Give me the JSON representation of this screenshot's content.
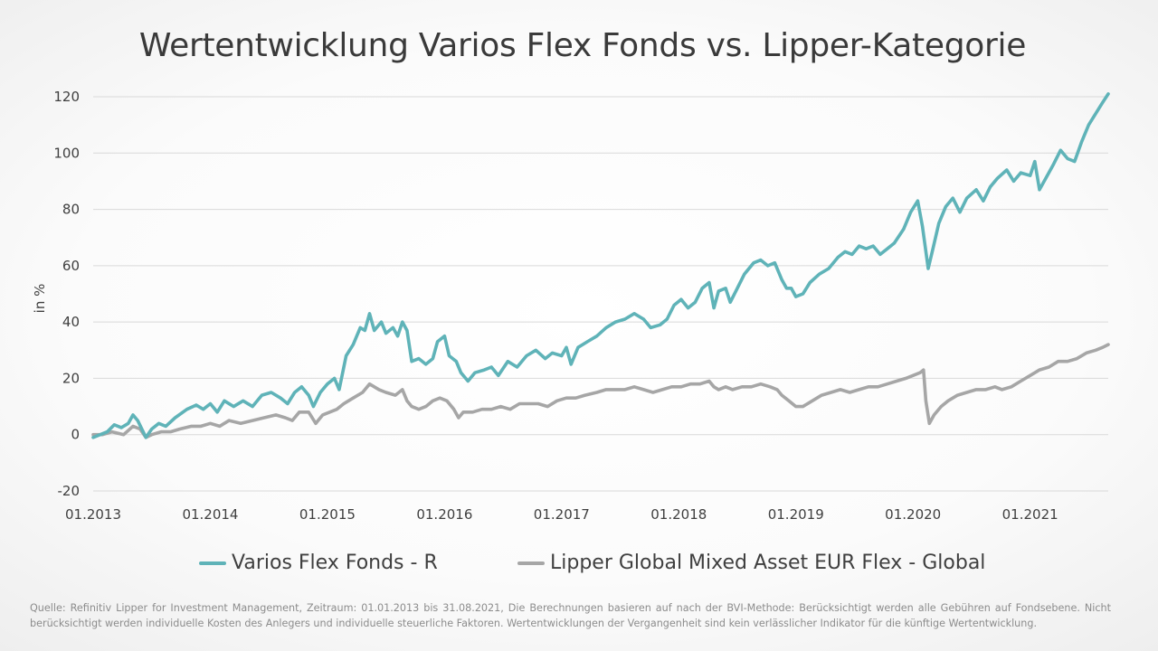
{
  "slide": {
    "title": "Wertentwicklung Varios Flex Fonds vs. Lipper-Kategorie",
    "source_note": "Quelle: Refinitiv Lipper for Investment Management, Zeitraum: 01.01.2013 bis 31.08.2021, Die Berechnungen basieren auf nach der BVI-Methode: Berücksichtigt werden alle Gebühren auf Fondsebene. Nicht berücksichtigt werden individuelle Kosten des Anlegers und individuelle steuerliche Faktoren. Wertentwicklungen der Vergangenheit sind kein verlässlicher Indikator für die künftige Wertentwicklung."
  },
  "chart_data": {
    "type": "line",
    "title": "Wertentwicklung Varios Flex Fonds vs. Lipper-Kategorie",
    "xlabel": "",
    "ylabel": "in %",
    "ylim": [
      -20,
      120
    ],
    "yticks": [
      -20,
      0,
      20,
      40,
      60,
      80,
      100,
      120
    ],
    "xlim": [
      2013.0,
      2021.667
    ],
    "xticks": [
      2013,
      2014,
      2015,
      2016,
      2017,
      2018,
      2019,
      2020,
      2021
    ],
    "xtick_labels": [
      "01.2013",
      "01.2014",
      "01.2015",
      "01.2016",
      "01.2017",
      "01.2018",
      "01.2019",
      "01.2020",
      "01.2021"
    ],
    "grid": "horizontal",
    "legend_position": "bottom",
    "colors": {
      "fund": "#5fb3b8",
      "category": "#a6a6a6",
      "grid": "#d9d9d9"
    },
    "series": [
      {
        "name": "Varios Flex Fonds - R",
        "color": "#5fb3b8",
        "points": [
          [
            2013.0,
            -1
          ],
          [
            2013.06,
            0
          ],
          [
            2013.12,
            1
          ],
          [
            2013.18,
            3.5
          ],
          [
            2013.24,
            2.5
          ],
          [
            2013.3,
            4
          ],
          [
            2013.34,
            7
          ],
          [
            2013.38,
            5
          ],
          [
            2013.45,
            -1
          ],
          [
            2013.5,
            2
          ],
          [
            2013.56,
            4
          ],
          [
            2013.62,
            3
          ],
          [
            2013.7,
            6
          ],
          [
            2013.8,
            9
          ],
          [
            2013.88,
            10.5
          ],
          [
            2013.94,
            9
          ],
          [
            2014.0,
            11
          ],
          [
            2014.06,
            8
          ],
          [
            2014.12,
            12
          ],
          [
            2014.2,
            10
          ],
          [
            2014.28,
            12
          ],
          [
            2014.36,
            10
          ],
          [
            2014.44,
            14
          ],
          [
            2014.52,
            15
          ],
          [
            2014.6,
            13
          ],
          [
            2014.66,
            11
          ],
          [
            2014.72,
            15
          ],
          [
            2014.78,
            17
          ],
          [
            2014.84,
            14
          ],
          [
            2014.88,
            10
          ],
          [
            2014.94,
            15
          ],
          [
            2015.0,
            18
          ],
          [
            2015.06,
            20
          ],
          [
            2015.1,
            16
          ],
          [
            2015.16,
            28
          ],
          [
            2015.22,
            32
          ],
          [
            2015.28,
            38
          ],
          [
            2015.32,
            37
          ],
          [
            2015.36,
            43
          ],
          [
            2015.4,
            37
          ],
          [
            2015.46,
            40
          ],
          [
            2015.5,
            36
          ],
          [
            2015.56,
            38
          ],
          [
            2015.6,
            35
          ],
          [
            2015.64,
            40
          ],
          [
            2015.68,
            37
          ],
          [
            2015.72,
            26
          ],
          [
            2015.78,
            27
          ],
          [
            2015.84,
            25
          ],
          [
            2015.9,
            27
          ],
          [
            2015.94,
            33
          ],
          [
            2016.0,
            35
          ],
          [
            2016.04,
            28
          ],
          [
            2016.1,
            26
          ],
          [
            2016.14,
            22
          ],
          [
            2016.2,
            19
          ],
          [
            2016.26,
            22
          ],
          [
            2016.34,
            23
          ],
          [
            2016.4,
            24
          ],
          [
            2016.46,
            21
          ],
          [
            2016.54,
            26
          ],
          [
            2016.62,
            24
          ],
          [
            2016.7,
            28
          ],
          [
            2016.78,
            30
          ],
          [
            2016.86,
            27
          ],
          [
            2016.92,
            29
          ],
          [
            2017.0,
            28
          ],
          [
            2017.04,
            31
          ],
          [
            2017.08,
            25
          ],
          [
            2017.14,
            31
          ],
          [
            2017.22,
            33
          ],
          [
            2017.3,
            35
          ],
          [
            2017.38,
            38
          ],
          [
            2017.46,
            40
          ],
          [
            2017.54,
            41
          ],
          [
            2017.62,
            43
          ],
          [
            2017.7,
            41
          ],
          [
            2017.76,
            38
          ],
          [
            2017.84,
            39
          ],
          [
            2017.9,
            41
          ],
          [
            2017.96,
            46
          ],
          [
            2018.02,
            48
          ],
          [
            2018.08,
            45
          ],
          [
            2018.14,
            47
          ],
          [
            2018.2,
            52
          ],
          [
            2018.26,
            54
          ],
          [
            2018.3,
            45
          ],
          [
            2018.34,
            51
          ],
          [
            2018.4,
            52
          ],
          [
            2018.44,
            47
          ],
          [
            2018.5,
            52
          ],
          [
            2018.56,
            57
          ],
          [
            2018.64,
            61
          ],
          [
            2018.7,
            62
          ],
          [
            2018.76,
            60
          ],
          [
            2018.82,
            61
          ],
          [
            2018.88,
            55
          ],
          [
            2018.92,
            52
          ],
          [
            2018.96,
            52
          ],
          [
            2019.0,
            49
          ],
          [
            2019.06,
            50
          ],
          [
            2019.12,
            54
          ],
          [
            2019.2,
            57
          ],
          [
            2019.28,
            59
          ],
          [
            2019.36,
            63
          ],
          [
            2019.42,
            65
          ],
          [
            2019.48,
            64
          ],
          [
            2019.54,
            67
          ],
          [
            2019.6,
            66
          ],
          [
            2019.66,
            67
          ],
          [
            2019.72,
            64
          ],
          [
            2019.78,
            66
          ],
          [
            2019.84,
            68
          ],
          [
            2019.92,
            73
          ],
          [
            2019.98,
            79
          ],
          [
            2020.04,
            83
          ],
          [
            2020.08,
            74
          ],
          [
            2020.13,
            59
          ],
          [
            2020.17,
            66
          ],
          [
            2020.22,
            75
          ],
          [
            2020.28,
            81
          ],
          [
            2020.34,
            84
          ],
          [
            2020.4,
            79
          ],
          [
            2020.46,
            84
          ],
          [
            2020.54,
            87
          ],
          [
            2020.6,
            83
          ],
          [
            2020.66,
            88
          ],
          [
            2020.72,
            91
          ],
          [
            2020.8,
            94
          ],
          [
            2020.86,
            90
          ],
          [
            2020.92,
            93
          ],
          [
            2021.0,
            92
          ],
          [
            2021.04,
            97
          ],
          [
            2021.08,
            87
          ],
          [
            2021.12,
            90
          ],
          [
            2021.2,
            96
          ],
          [
            2021.26,
            101
          ],
          [
            2021.32,
            98
          ],
          [
            2021.38,
            97
          ],
          [
            2021.44,
            104
          ],
          [
            2021.5,
            110
          ],
          [
            2021.56,
            114
          ],
          [
            2021.62,
            118
          ],
          [
            2021.667,
            121
          ]
        ]
      },
      {
        "name": "Lipper Global Mixed Asset EUR Flex - Global",
        "color": "#a6a6a6",
        "points": [
          [
            2013.0,
            0
          ],
          [
            2013.08,
            0
          ],
          [
            2013.16,
            1
          ],
          [
            2013.26,
            0
          ],
          [
            2013.34,
            3
          ],
          [
            2013.4,
            2
          ],
          [
            2013.45,
            -1
          ],
          [
            2013.5,
            0
          ],
          [
            2013.58,
            1
          ],
          [
            2013.66,
            1
          ],
          [
            2013.74,
            2
          ],
          [
            2013.84,
            3
          ],
          [
            2013.92,
            3
          ],
          [
            2014.0,
            4
          ],
          [
            2014.08,
            3
          ],
          [
            2014.16,
            5
          ],
          [
            2014.26,
            4
          ],
          [
            2014.36,
            5
          ],
          [
            2014.46,
            6
          ],
          [
            2014.56,
            7
          ],
          [
            2014.64,
            6
          ],
          [
            2014.7,
            5
          ],
          [
            2014.76,
            8
          ],
          [
            2014.84,
            8
          ],
          [
            2014.9,
            4
          ],
          [
            2014.96,
            7
          ],
          [
            2015.02,
            8
          ],
          [
            2015.08,
            9
          ],
          [
            2015.14,
            11
          ],
          [
            2015.22,
            13
          ],
          [
            2015.3,
            15
          ],
          [
            2015.36,
            18
          ],
          [
            2015.44,
            16
          ],
          [
            2015.5,
            15
          ],
          [
            2015.58,
            14
          ],
          [
            2015.64,
            16
          ],
          [
            2015.68,
            12
          ],
          [
            2015.72,
            10
          ],
          [
            2015.78,
            9
          ],
          [
            2015.84,
            10
          ],
          [
            2015.9,
            12
          ],
          [
            2015.96,
            13
          ],
          [
            2016.02,
            12
          ],
          [
            2016.08,
            9
          ],
          [
            2016.12,
            6
          ],
          [
            2016.16,
            8
          ],
          [
            2016.24,
            8
          ],
          [
            2016.32,
            9
          ],
          [
            2016.4,
            9
          ],
          [
            2016.48,
            10
          ],
          [
            2016.56,
            9
          ],
          [
            2016.64,
            11
          ],
          [
            2016.72,
            11
          ],
          [
            2016.8,
            11
          ],
          [
            2016.88,
            10
          ],
          [
            2016.96,
            12
          ],
          [
            2017.04,
            13
          ],
          [
            2017.12,
            13
          ],
          [
            2017.2,
            14
          ],
          [
            2017.3,
            15
          ],
          [
            2017.38,
            16
          ],
          [
            2017.46,
            16
          ],
          [
            2017.54,
            16
          ],
          [
            2017.62,
            17
          ],
          [
            2017.7,
            16
          ],
          [
            2017.78,
            15
          ],
          [
            2017.86,
            16
          ],
          [
            2017.94,
            17
          ],
          [
            2018.02,
            17
          ],
          [
            2018.1,
            18
          ],
          [
            2018.18,
            18
          ],
          [
            2018.26,
            19
          ],
          [
            2018.3,
            17
          ],
          [
            2018.34,
            16
          ],
          [
            2018.4,
            17
          ],
          [
            2018.46,
            16
          ],
          [
            2018.54,
            17
          ],
          [
            2018.62,
            17
          ],
          [
            2018.7,
            18
          ],
          [
            2018.78,
            17
          ],
          [
            2018.84,
            16
          ],
          [
            2018.88,
            14
          ],
          [
            2018.94,
            12
          ],
          [
            2019.0,
            10
          ],
          [
            2019.06,
            10
          ],
          [
            2019.14,
            12
          ],
          [
            2019.22,
            14
          ],
          [
            2019.3,
            15
          ],
          [
            2019.38,
            16
          ],
          [
            2019.46,
            15
          ],
          [
            2019.54,
            16
          ],
          [
            2019.62,
            17
          ],
          [
            2019.7,
            17
          ],
          [
            2019.78,
            18
          ],
          [
            2019.86,
            19
          ],
          [
            2019.94,
            20
          ],
          [
            2020.0,
            21
          ],
          [
            2020.06,
            22
          ],
          [
            2020.09,
            23
          ],
          [
            2020.11,
            12
          ],
          [
            2020.14,
            4
          ],
          [
            2020.18,
            7
          ],
          [
            2020.24,
            10
          ],
          [
            2020.3,
            12
          ],
          [
            2020.38,
            14
          ],
          [
            2020.46,
            15
          ],
          [
            2020.54,
            16
          ],
          [
            2020.62,
            16
          ],
          [
            2020.7,
            17
          ],
          [
            2020.76,
            16
          ],
          [
            2020.84,
            17
          ],
          [
            2020.92,
            19
          ],
          [
            2021.0,
            21
          ],
          [
            2021.08,
            23
          ],
          [
            2021.16,
            24
          ],
          [
            2021.24,
            26
          ],
          [
            2021.32,
            26
          ],
          [
            2021.4,
            27
          ],
          [
            2021.48,
            29
          ],
          [
            2021.56,
            30
          ],
          [
            2021.62,
            31
          ],
          [
            2021.667,
            32
          ]
        ]
      }
    ]
  }
}
